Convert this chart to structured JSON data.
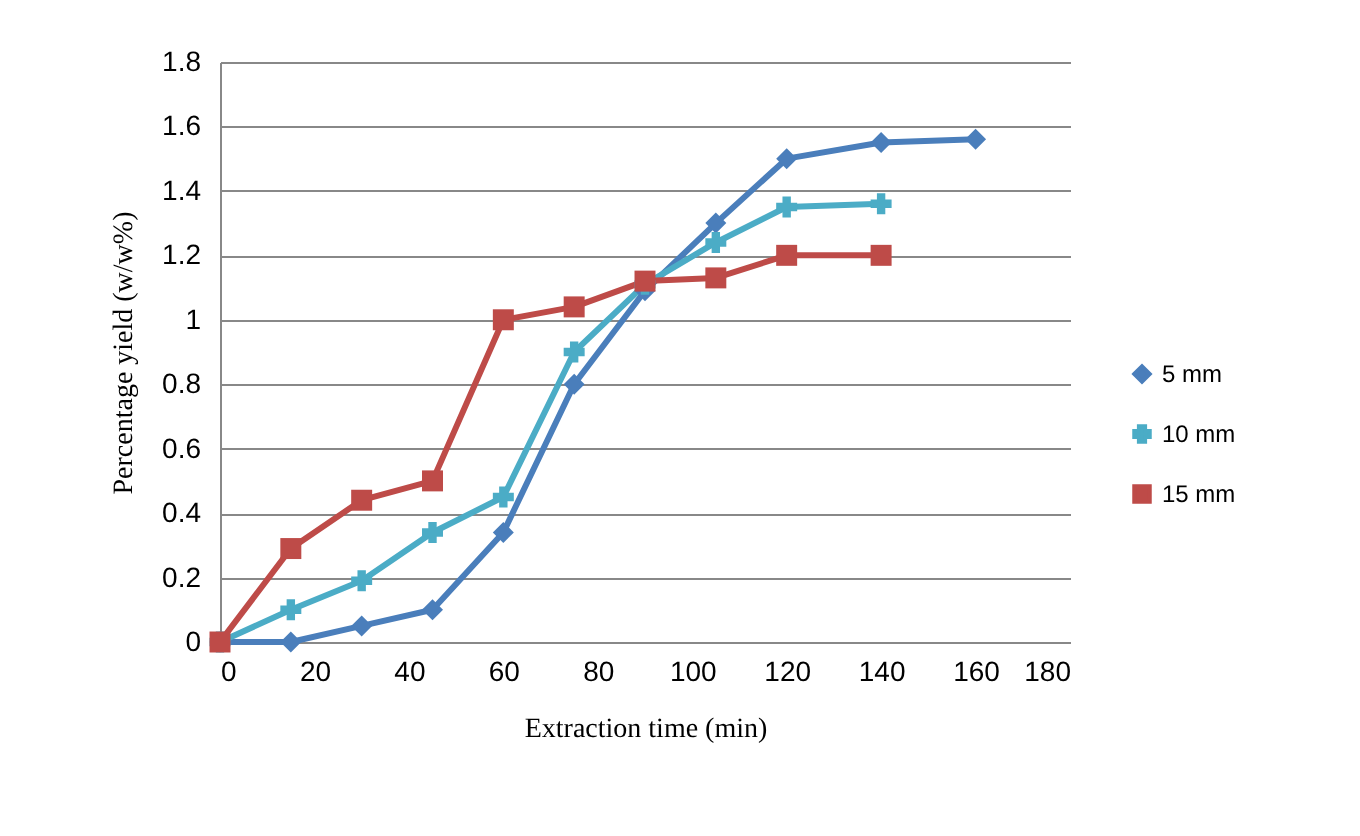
{
  "chart_data": {
    "type": "line",
    "xlabel": "Extraction time (min)",
    "ylabel": "Percentage yield (w/w%)",
    "series": [
      {
        "name": "5 mm",
        "color": "#4a7ebb",
        "marker": "diamond",
        "x": [
          0,
          15,
          30,
          45,
          60,
          75,
          90,
          105,
          120,
          140,
          160
        ],
        "values": [
          0,
          0,
          0.05,
          0.1,
          0.34,
          0.8,
          1.09,
          1.3,
          1.5,
          1.55,
          1.56
        ]
      },
      {
        "name": "10 mm",
        "color": "#4bacc6",
        "marker": "cross",
        "x": [
          0,
          15,
          30,
          45,
          60,
          75,
          90,
          105,
          120,
          140
        ],
        "values": [
          0,
          0.1,
          0.19,
          0.34,
          0.45,
          0.9,
          1.11,
          1.24,
          1.35,
          1.36
        ]
      },
      {
        "name": "15 mm",
        "color": "#be4b48",
        "marker": "square",
        "x": [
          0,
          15,
          30,
          45,
          60,
          75,
          90,
          105,
          120,
          140
        ],
        "values": [
          0,
          0.29,
          0.44,
          0.5,
          1,
          1.04,
          1.12,
          1.13,
          1.2,
          1.2
        ]
      }
    ],
    "xlim": [
      0,
      180
    ],
    "xticks": [
      0,
      20,
      40,
      60,
      80,
      100,
      120,
      140,
      160,
      180
    ],
    "ylim": [
      0,
      1.8
    ],
    "yticks": [
      0,
      0.2,
      0.4,
      0.6,
      0.8,
      1,
      1.2,
      1.4,
      1.6,
      1.8
    ],
    "grid": "y",
    "legend": "right"
  }
}
